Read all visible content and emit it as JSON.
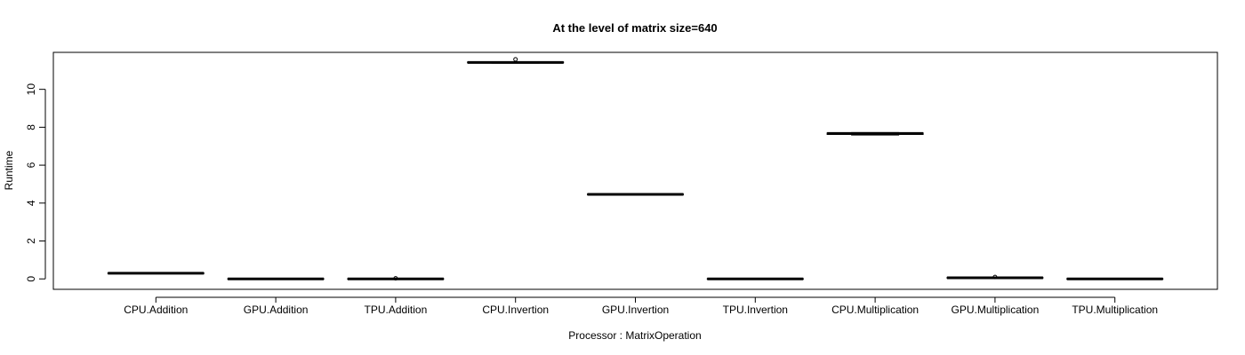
{
  "chart_data": {
    "type": "boxplot",
    "title": "At the level of matrix size=640",
    "xlabel": "Processor : MatrixOperation",
    "ylabel": "Runtime",
    "ylim": [
      -0.55,
      11.95
    ],
    "yticks": [
      0,
      2,
      4,
      6,
      8,
      10
    ],
    "grid": false,
    "categories": [
      "CPU.Addition",
      "GPU.Addition",
      "TPU.Addition",
      "CPU.Invertion",
      "GPU.Invertion",
      "TPU.Invertion",
      "CPU.Multiplication",
      "GPU.Multiplication",
      "TPU.Multiplication"
    ],
    "boxes": [
      {
        "min": 0.28,
        "q1": 0.29,
        "median": 0.3,
        "q3": 0.31,
        "max": 0.32,
        "outliers": []
      },
      {
        "min": 0.0,
        "q1": 0.0,
        "median": 0.0,
        "q3": 0.01,
        "max": 0.01,
        "outliers": []
      },
      {
        "min": 0.0,
        "q1": 0.0,
        "median": 0.0,
        "q3": 0.01,
        "max": 0.01,
        "outliers": [
          0.03
        ]
      },
      {
        "min": 11.38,
        "q1": 11.4,
        "median": 11.42,
        "q3": 11.44,
        "max": 11.46,
        "outliers": [
          11.58
        ]
      },
      {
        "min": 4.44,
        "q1": 4.45,
        "median": 4.46,
        "q3": 4.47,
        "max": 4.48,
        "outliers": []
      },
      {
        "min": 0.0,
        "q1": 0.0,
        "median": 0.0,
        "q3": 0.01,
        "max": 0.01,
        "outliers": []
      },
      {
        "min": 7.59,
        "q1": 7.62,
        "median": 7.67,
        "q3": 7.7,
        "max": 7.72,
        "outliers": []
      },
      {
        "min": 0.04,
        "q1": 0.05,
        "median": 0.06,
        "q3": 0.07,
        "max": 0.08,
        "outliers": [
          0.1
        ]
      },
      {
        "min": 0.0,
        "q1": 0.0,
        "median": 0.0,
        "q3": 0.01,
        "max": 0.01,
        "outliers": []
      }
    ]
  }
}
